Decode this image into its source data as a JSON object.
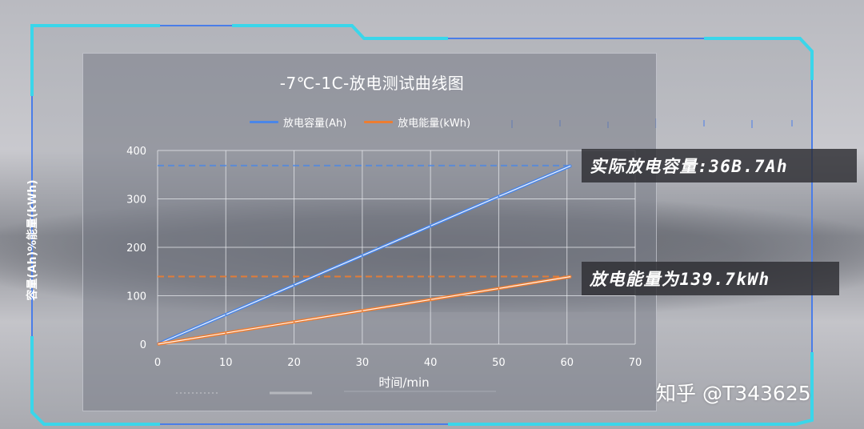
{
  "colors": {
    "capacity": "#4a86e8",
    "energy": "#ed7d31",
    "frame": "#3ad6ea",
    "grid": "#e8eaee"
  },
  "callouts": {
    "capacity": "实际放电容量:36B.7Ah",
    "energy": "放电能量为139.7kWh"
  },
  "watermark": "知乎 @T343625",
  "chart_data": {
    "type": "line",
    "title": "-7℃-1C-放电测试曲线图",
    "xlabel": "时间/min",
    "ylabel": "容量(Ah)%能量(kWh)",
    "xlim": [
      0,
      70
    ],
    "ylim": [
      0,
      400
    ],
    "x_ticks": [
      0,
      10,
      20,
      30,
      40,
      50,
      60,
      70
    ],
    "y_ticks": [
      0,
      100,
      200,
      300,
      400
    ],
    "grid": true,
    "legend_position": "top-center",
    "series": [
      {
        "name": "放电容量(Ah)",
        "x": [
          0,
          10,
          20,
          30,
          40,
          50,
          60.6
        ],
        "values": [
          0,
          61,
          122,
          183,
          244,
          305,
          368.7
        ]
      },
      {
        "name": "放电能量(kWh)",
        "x": [
          0,
          10,
          20,
          30,
          40,
          50,
          60.6
        ],
        "values": [
          0,
          23,
          46,
          69,
          92,
          115,
          139.7
        ]
      }
    ],
    "reference_lines": [
      {
        "series": "放电容量(Ah)",
        "y": 368.7
      },
      {
        "series": "放电能量(kWh)",
        "y": 139.7
      }
    ]
  }
}
